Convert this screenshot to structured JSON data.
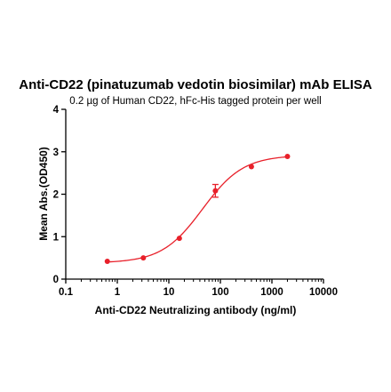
{
  "chart_data": {
    "type": "scatter",
    "title": "Anti-CD22 (pinatuzumab vedotin biosimilar) mAb ELISA",
    "subtitle": "0.2 µg of Human CD22, hFc-His tagged protein per well",
    "xlabel": "Anti-CD22 Neutralizing antibody (ng/ml)",
    "ylabel": "Mean Abs.(OD450)",
    "x_scale": "log",
    "xlim": [
      0.1,
      10000
    ],
    "ylim": [
      0,
      4
    ],
    "x_ticks": [
      "0.1",
      "1",
      "10",
      "100",
      "1000",
      "10000"
    ],
    "y_ticks": [
      "0",
      "1",
      "2",
      "3",
      "4"
    ],
    "grid": false,
    "series": [
      {
        "color": "#e8202a",
        "points": [
          {
            "x": 0.64,
            "y": 0.42,
            "err": 0.0
          },
          {
            "x": 3.2,
            "y": 0.5,
            "err": 0.0
          },
          {
            "x": 16,
            "y": 0.96,
            "err": 0.0
          },
          {
            "x": 80,
            "y": 2.08,
            "err": 0.15
          },
          {
            "x": 400,
            "y": 2.65,
            "err": 0.0
          },
          {
            "x": 2000,
            "y": 2.89,
            "err": 0.0
          }
        ],
        "fit": {
          "model": "4PL",
          "bottom": 0.38,
          "top": 2.92,
          "ec50": 45,
          "hill": 1.1
        }
      }
    ]
  }
}
